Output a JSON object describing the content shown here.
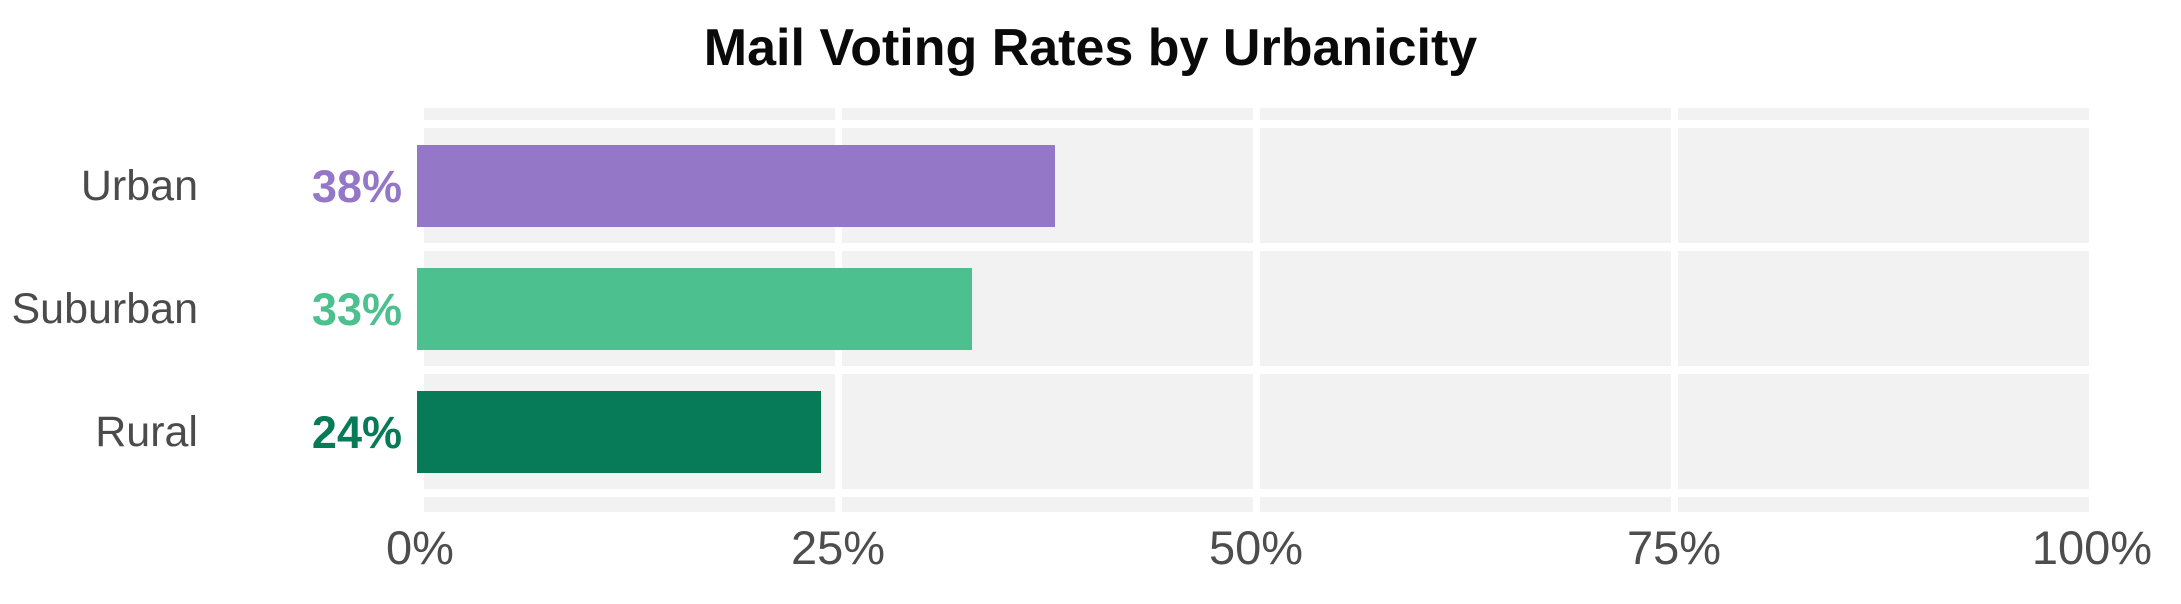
{
  "chart_data": {
    "type": "bar",
    "orientation": "horizontal",
    "title": "Mail Voting Rates by Urbanicity",
    "categories": [
      "Urban",
      "Suburban",
      "Rural"
    ],
    "values": [
      38,
      33,
      24
    ],
    "value_labels": [
      "38%",
      "33%",
      "24%"
    ],
    "bar_colors": [
      "#9577C8",
      "#4DC08F",
      "#077A57"
    ],
    "xlabel": "",
    "ylabel": "",
    "xlim": [
      0,
      100
    ],
    "x_ticks": [
      {
        "value": 0,
        "label": "0%"
      },
      {
        "value": 25,
        "label": "25%"
      },
      {
        "value": 50,
        "label": "50%"
      },
      {
        "value": 75,
        "label": "75%"
      },
      {
        "value": 100,
        "label": "100%"
      }
    ],
    "legend": null,
    "grid": "white vertical gridlines at ticks over light-gray row bands",
    "panel_background": "#F2F2F2",
    "gridline_color": "#FFFFFF",
    "title_color": "#0A0A0A",
    "category_label_color": "#4B4B4B",
    "tick_label_color": "#4D4D4D"
  }
}
